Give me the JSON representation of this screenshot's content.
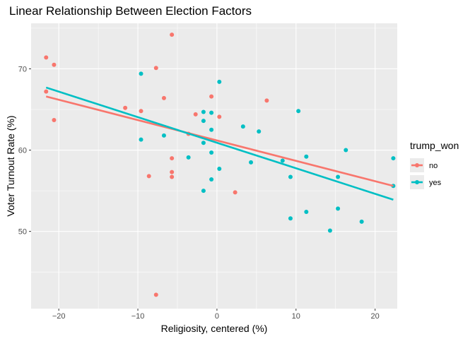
{
  "chart_data": {
    "type": "scatter",
    "title": "Linear Relationship Between Election Factors",
    "xlabel": "Religiosity, centered (%)",
    "ylabel": "Voter Turnout Rate (%)",
    "xlim": [
      -23.5,
      22.8
    ],
    "ylim": [
      40.5,
      75.6
    ],
    "x_ticks": [
      -20,
      -10,
      0,
      10,
      20
    ],
    "y_ticks": [
      50,
      60,
      70
    ],
    "grid": true,
    "legend": {
      "title": "trump_won",
      "position": "right"
    },
    "series": [
      {
        "name": "no",
        "color": "#F8766D",
        "points": [
          {
            "x": -21.6,
            "y": 71.4
          },
          {
            "x": -20.6,
            "y": 70.5
          },
          {
            "x": -21.6,
            "y": 67.2
          },
          {
            "x": -20.6,
            "y": 63.7
          },
          {
            "x": -5.7,
            "y": 74.2
          },
          {
            "x": -7.7,
            "y": 70.1
          },
          {
            "x": -6.7,
            "y": 66.4
          },
          {
            "x": -11.6,
            "y": 65.2
          },
          {
            "x": -9.6,
            "y": 64.8
          },
          {
            "x": -2.7,
            "y": 64.4
          },
          {
            "x": -3.6,
            "y": 62.0
          },
          {
            "x": -0.7,
            "y": 66.6
          },
          {
            "x": 0.3,
            "y": 64.1
          },
          {
            "x": 6.3,
            "y": 66.1
          },
          {
            "x": -5.7,
            "y": 59.0
          },
          {
            "x": -5.7,
            "y": 57.3
          },
          {
            "x": -8.6,
            "y": 56.8
          },
          {
            "x": -5.7,
            "y": 56.7
          },
          {
            "x": 2.3,
            "y": 54.8
          },
          {
            "x": -7.7,
            "y": 42.2
          }
        ],
        "trend": {
          "x": [
            -21.6,
            22.3
          ],
          "y": [
            66.6,
            55.6
          ]
        }
      },
      {
        "name": "yes",
        "color": "#00BFC4",
        "points": [
          {
            "x": -9.6,
            "y": 69.4
          },
          {
            "x": 0.3,
            "y": 68.4
          },
          {
            "x": -1.7,
            "y": 64.7
          },
          {
            "x": -0.7,
            "y": 64.6
          },
          {
            "x": -1.7,
            "y": 63.6
          },
          {
            "x": -0.7,
            "y": 62.5
          },
          {
            "x": 3.3,
            "y": 62.9
          },
          {
            "x": 5.3,
            "y": 62.3
          },
          {
            "x": 10.3,
            "y": 64.8
          },
          {
            "x": -6.7,
            "y": 61.8
          },
          {
            "x": -9.6,
            "y": 61.3
          },
          {
            "x": -1.7,
            "y": 60.9
          },
          {
            "x": -3.6,
            "y": 59.1
          },
          {
            "x": -0.7,
            "y": 59.7
          },
          {
            "x": 0.3,
            "y": 57.7
          },
          {
            "x": -0.7,
            "y": 56.4
          },
          {
            "x": 4.3,
            "y": 58.5
          },
          {
            "x": 8.3,
            "y": 58.7
          },
          {
            "x": 11.3,
            "y": 59.2
          },
          {
            "x": 16.3,
            "y": 60.0
          },
          {
            "x": 22.3,
            "y": 59.0
          },
          {
            "x": -1.7,
            "y": 55.0
          },
          {
            "x": 9.3,
            "y": 56.7
          },
          {
            "x": 15.3,
            "y": 56.7
          },
          {
            "x": 22.3,
            "y": 55.6
          },
          {
            "x": 11.3,
            "y": 52.4
          },
          {
            "x": 15.3,
            "y": 52.8
          },
          {
            "x": 9.3,
            "y": 51.6
          },
          {
            "x": 18.3,
            "y": 51.2
          },
          {
            "x": 14.3,
            "y": 50.1
          }
        ],
        "trend": {
          "x": [
            -21.6,
            22.3
          ],
          "y": [
            67.7,
            53.9
          ]
        }
      }
    ]
  }
}
